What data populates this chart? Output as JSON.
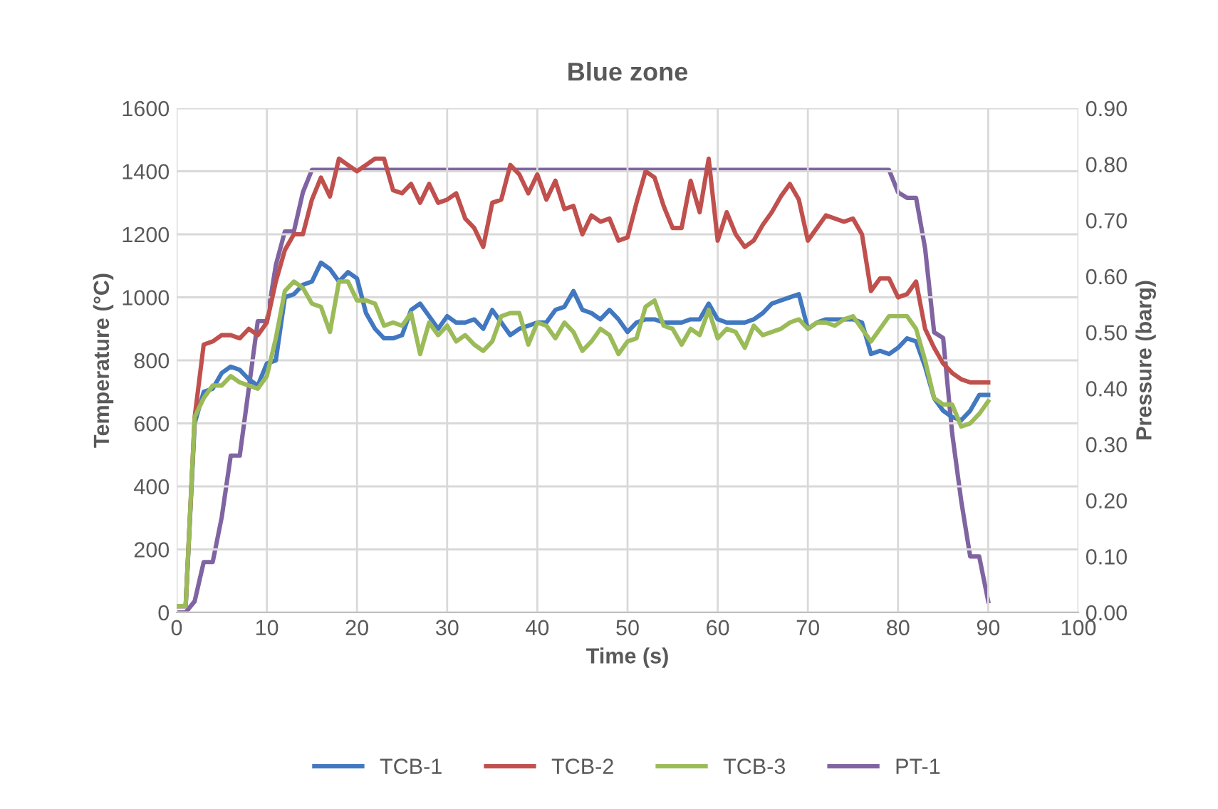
{
  "chart_data": {
    "type": "line",
    "title": "Blue zone",
    "xlabel": "Time (s)",
    "ylabel": "Temperature (°C)",
    "y2label": "Pressure (barg)",
    "x": [
      0,
      1,
      2,
      3,
      4,
      5,
      6,
      7,
      8,
      9,
      10,
      11,
      12,
      13,
      14,
      15,
      16,
      17,
      18,
      19,
      20,
      21,
      22,
      23,
      24,
      25,
      26,
      27,
      28,
      29,
      30,
      31,
      32,
      33,
      34,
      35,
      36,
      37,
      38,
      39,
      40,
      41,
      42,
      43,
      44,
      45,
      46,
      47,
      48,
      49,
      50,
      51,
      52,
      53,
      54,
      55,
      56,
      57,
      58,
      59,
      60,
      61,
      62,
      63,
      64,
      65,
      66,
      67,
      68,
      69,
      70,
      71,
      72,
      73,
      74,
      75,
      76,
      77,
      78,
      79,
      80,
      81,
      82,
      83,
      84,
      85,
      86,
      87,
      88,
      89,
      90
    ],
    "series": [
      {
        "name": "TCB-1",
        "color": "#4178c0",
        "values": [
          20,
          20,
          600,
          700,
          710,
          760,
          780,
          770,
          740,
          720,
          790,
          800,
          1000,
          1010,
          1040,
          1050,
          1110,
          1090,
          1050,
          1080,
          1060,
          950,
          900,
          870,
          870,
          880,
          960,
          980,
          940,
          900,
          940,
          920,
          920,
          930,
          900,
          960,
          920,
          880,
          900,
          910,
          920,
          920,
          960,
          970,
          1020,
          960,
          950,
          930,
          960,
          930,
          890,
          920,
          930,
          930,
          920,
          920,
          920,
          930,
          930,
          980,
          930,
          920,
          920,
          920,
          930,
          950,
          980,
          990,
          1000,
          1010,
          900,
          920,
          930,
          930,
          930,
          930,
          920,
          820,
          830,
          820,
          840,
          870,
          860,
          780,
          680,
          640,
          620,
          610,
          640,
          690,
          690
        ]
      },
      {
        "name": "TCB-2",
        "color": "#c0504d",
        "values": [
          20,
          20,
          620,
          850,
          860,
          880,
          880,
          870,
          900,
          880,
          920,
          1050,
          1150,
          1200,
          1200,
          1310,
          1380,
          1320,
          1440,
          1420,
          1400,
          1420,
          1440,
          1440,
          1340,
          1330,
          1360,
          1300,
          1360,
          1300,
          1310,
          1330,
          1250,
          1220,
          1160,
          1300,
          1310,
          1420,
          1390,
          1330,
          1390,
          1310,
          1370,
          1280,
          1290,
          1200,
          1260,
          1240,
          1250,
          1180,
          1190,
          1300,
          1400,
          1380,
          1290,
          1220,
          1220,
          1370,
          1270,
          1440,
          1180,
          1270,
          1200,
          1160,
          1180,
          1230,
          1270,
          1320,
          1360,
          1310,
          1180,
          1220,
          1260,
          1250,
          1240,
          1250,
          1200,
          1020,
          1060,
          1060,
          1000,
          1010,
          1050,
          900,
          840,
          790,
          760,
          740,
          730,
          730,
          730
        ]
      },
      {
        "name": "TCB-3",
        "color": "#9bbb59",
        "values": [
          20,
          20,
          620,
          680,
          720,
          720,
          750,
          730,
          720,
          710,
          750,
          870,
          1020,
          1050,
          1030,
          980,
          970,
          890,
          1050,
          1050,
          990,
          990,
          980,
          910,
          920,
          910,
          950,
          820,
          920,
          880,
          910,
          860,
          880,
          850,
          830,
          860,
          940,
          950,
          950,
          850,
          920,
          910,
          870,
          920,
          890,
          830,
          860,
          900,
          880,
          820,
          860,
          870,
          970,
          990,
          910,
          900,
          850,
          900,
          880,
          960,
          870,
          900,
          890,
          840,
          910,
          880,
          890,
          900,
          920,
          930,
          900,
          920,
          920,
          910,
          930,
          940,
          900,
          860,
          900,
          940,
          940,
          940,
          900,
          800,
          680,
          660,
          660,
          590,
          600,
          630,
          670
        ]
      },
      {
        "name": "PT-1",
        "color": "#8064a2",
        "axis": "y2",
        "values": [
          0,
          0,
          0.02,
          0.09,
          0.09,
          0.17,
          0.28,
          0.28,
          0.4,
          0.52,
          0.52,
          0.62,
          0.68,
          0.68,
          0.75,
          0.79,
          0.79,
          0.79,
          0.79,
          0.79,
          0.79,
          0.79,
          0.79,
          0.79,
          0.79,
          0.79,
          0.79,
          0.79,
          0.79,
          0.79,
          0.79,
          0.79,
          0.79,
          0.79,
          0.79,
          0.79,
          0.79,
          0.79,
          0.79,
          0.79,
          0.79,
          0.79,
          0.79,
          0.79,
          0.79,
          0.79,
          0.79,
          0.79,
          0.79,
          0.79,
          0.79,
          0.79,
          0.79,
          0.79,
          0.79,
          0.79,
          0.79,
          0.79,
          0.79,
          0.79,
          0.79,
          0.79,
          0.79,
          0.79,
          0.79,
          0.79,
          0.79,
          0.79,
          0.79,
          0.79,
          0.79,
          0.79,
          0.79,
          0.79,
          0.79,
          0.79,
          0.79,
          0.79,
          0.79,
          0.79,
          0.75,
          0.74,
          0.74,
          0.65,
          0.5,
          0.49,
          0.32,
          0.2,
          0.1,
          0.1,
          0.02
        ]
      }
    ],
    "xlim": [
      0,
      100
    ],
    "xticks": [
      0,
      10,
      20,
      30,
      40,
      50,
      60,
      70,
      80,
      90,
      100
    ],
    "ylim": [
      0,
      1600
    ],
    "yticks": [
      0,
      200,
      400,
      600,
      800,
      1000,
      1200,
      1400,
      1600
    ],
    "y2lim": [
      0,
      0.9
    ],
    "y2ticks": [
      {
        "value": 0,
        "label": "0.00"
      },
      {
        "value": 0.1,
        "label": "0.10"
      },
      {
        "value": 0.2,
        "label": "0.20"
      },
      {
        "value": 0.3,
        "label": "0.30"
      },
      {
        "value": 0.4,
        "label": "0.40"
      },
      {
        "value": 0.5,
        "label": "0.50"
      },
      {
        "value": 0.6,
        "label": "0.60"
      },
      {
        "value": 0.7,
        "label": "0.70"
      },
      {
        "value": 0.8,
        "label": "0.80"
      },
      {
        "value": 0.9,
        "label": "0.90"
      }
    ],
    "grid": true,
    "legend": "bottom",
    "marker": "none",
    "line_style": "solid"
  }
}
